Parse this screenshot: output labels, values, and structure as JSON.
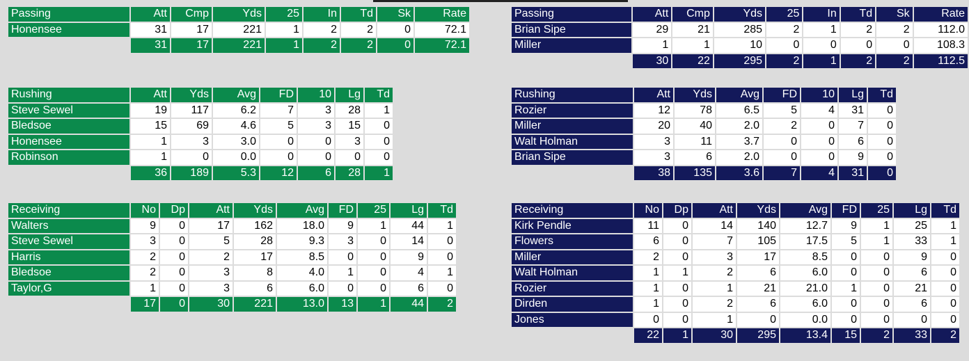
{
  "home": {
    "passing": {
      "title": "Passing",
      "columns": [
        "Att",
        "Cmp",
        "Yds",
        "25",
        "In",
        "Td",
        "Sk",
        "Rate"
      ],
      "rows": [
        {
          "name": "Honensee",
          "values": [
            "31",
            "17",
            "221",
            "1",
            "2",
            "2",
            "0",
            "72.1"
          ]
        }
      ],
      "totals": [
        "31",
        "17",
        "221",
        "1",
        "2",
        "2",
        "0",
        "72.1"
      ]
    },
    "rushing": {
      "title": "Rushing",
      "columns": [
        "Att",
        "Yds",
        "Avg",
        "FD",
        "10",
        "Lg",
        "Td"
      ],
      "rows": [
        {
          "name": "Steve Sewel",
          "values": [
            "19",
            "117",
            "6.2",
            "7",
            "3",
            "28",
            "1"
          ]
        },
        {
          "name": "Bledsoe",
          "values": [
            "15",
            "69",
            "4.6",
            "5",
            "3",
            "15",
            "0"
          ]
        },
        {
          "name": "Honensee",
          "values": [
            "1",
            "3",
            "3.0",
            "0",
            "0",
            "3",
            "0"
          ]
        },
        {
          "name": "Robinson",
          "values": [
            "1",
            "0",
            "0.0",
            "0",
            "0",
            "0",
            "0"
          ]
        }
      ],
      "totals": [
        "36",
        "189",
        "5.3",
        "12",
        "6",
        "28",
        "1"
      ]
    },
    "receiving": {
      "title": "Receiving",
      "columns": [
        "No",
        "Dp",
        "Att",
        "Yds",
        "Avg",
        "FD",
        "25",
        "Lg",
        "Td"
      ],
      "rows": [
        {
          "name": "Walters",
          "values": [
            "9",
            "0",
            "17",
            "162",
            "18.0",
            "9",
            "1",
            "44",
            "1"
          ]
        },
        {
          "name": "Steve Sewel",
          "values": [
            "3",
            "0",
            "5",
            "28",
            "9.3",
            "3",
            "0",
            "14",
            "0"
          ]
        },
        {
          "name": "Harris",
          "values": [
            "2",
            "0",
            "2",
            "17",
            "8.5",
            "0",
            "0",
            "9",
            "0"
          ]
        },
        {
          "name": "Bledsoe",
          "values": [
            "2",
            "0",
            "3",
            "8",
            "4.0",
            "1",
            "0",
            "4",
            "1"
          ]
        },
        {
          "name": "Taylor,G",
          "values": [
            "1",
            "0",
            "3",
            "6",
            "6.0",
            "0",
            "0",
            "6",
            "0"
          ]
        }
      ],
      "totals": [
        "17",
        "0",
        "30",
        "221",
        "13.0",
        "13",
        "1",
        "44",
        "2"
      ]
    }
  },
  "away": {
    "passing": {
      "title": "Passing",
      "columns": [
        "Att",
        "Cmp",
        "Yds",
        "25",
        "In",
        "Td",
        "Sk",
        "Rate"
      ],
      "rows": [
        {
          "name": "Brian Sipe",
          "values": [
            "29",
            "21",
            "285",
            "2",
            "1",
            "2",
            "2",
            "112.0"
          ]
        },
        {
          "name": "Miller",
          "values": [
            "1",
            "1",
            "10",
            "0",
            "0",
            "0",
            "0",
            "108.3"
          ]
        }
      ],
      "totals": [
        "30",
        "22",
        "295",
        "2",
        "1",
        "2",
        "2",
        "112.5"
      ]
    },
    "rushing": {
      "title": "Rushing",
      "columns": [
        "Att",
        "Yds",
        "Avg",
        "FD",
        "10",
        "Lg",
        "Td"
      ],
      "rows": [
        {
          "name": "Rozier",
          "values": [
            "12",
            "78",
            "6.5",
            "5",
            "4",
            "31",
            "0"
          ]
        },
        {
          "name": "Miller",
          "values": [
            "20",
            "40",
            "2.0",
            "2",
            "0",
            "7",
            "0"
          ]
        },
        {
          "name": "Walt Holman",
          "values": [
            "3",
            "11",
            "3.7",
            "0",
            "0",
            "6",
            "0"
          ]
        },
        {
          "name": "Brian Sipe",
          "values": [
            "3",
            "6",
            "2.0",
            "0",
            "0",
            "9",
            "0"
          ]
        }
      ],
      "totals": [
        "38",
        "135",
        "3.6",
        "7",
        "4",
        "31",
        "0"
      ]
    },
    "receiving": {
      "title": "Receiving",
      "columns": [
        "No",
        "Dp",
        "Att",
        "Yds",
        "Avg",
        "FD",
        "25",
        "Lg",
        "Td"
      ],
      "rows": [
        {
          "name": "Kirk Pendle",
          "values": [
            "11",
            "0",
            "14",
            "140",
            "12.7",
            "9",
            "1",
            "25",
            "1"
          ]
        },
        {
          "name": "Flowers",
          "values": [
            "6",
            "0",
            "7",
            "105",
            "17.5",
            "5",
            "1",
            "33",
            "1"
          ]
        },
        {
          "name": "Miller",
          "values": [
            "2",
            "0",
            "3",
            "17",
            "8.5",
            "0",
            "0",
            "9",
            "0"
          ]
        },
        {
          "name": "Walt Holman",
          "values": [
            "1",
            "1",
            "2",
            "6",
            "6.0",
            "0",
            "0",
            "6",
            "0"
          ]
        },
        {
          "name": "Rozier",
          "values": [
            "1",
            "0",
            "1",
            "21",
            "21.0",
            "1",
            "0",
            "21",
            "0"
          ]
        },
        {
          "name": "Dirden",
          "values": [
            "1",
            "0",
            "2",
            "6",
            "6.0",
            "0",
            "0",
            "6",
            "0"
          ]
        },
        {
          "name": "Jones",
          "values": [
            "0",
            "0",
            "1",
            "0",
            "0.0",
            "0",
            "0",
            "0",
            "0"
          ]
        }
      ],
      "totals": [
        "22",
        "1",
        "30",
        "295",
        "13.4",
        "15",
        "2",
        "33",
        "2"
      ]
    }
  },
  "colors": {
    "home_header": "#0b8a4c",
    "away_header": "#13195a",
    "cell": "#ffffff",
    "background": "#dcdcdc"
  }
}
